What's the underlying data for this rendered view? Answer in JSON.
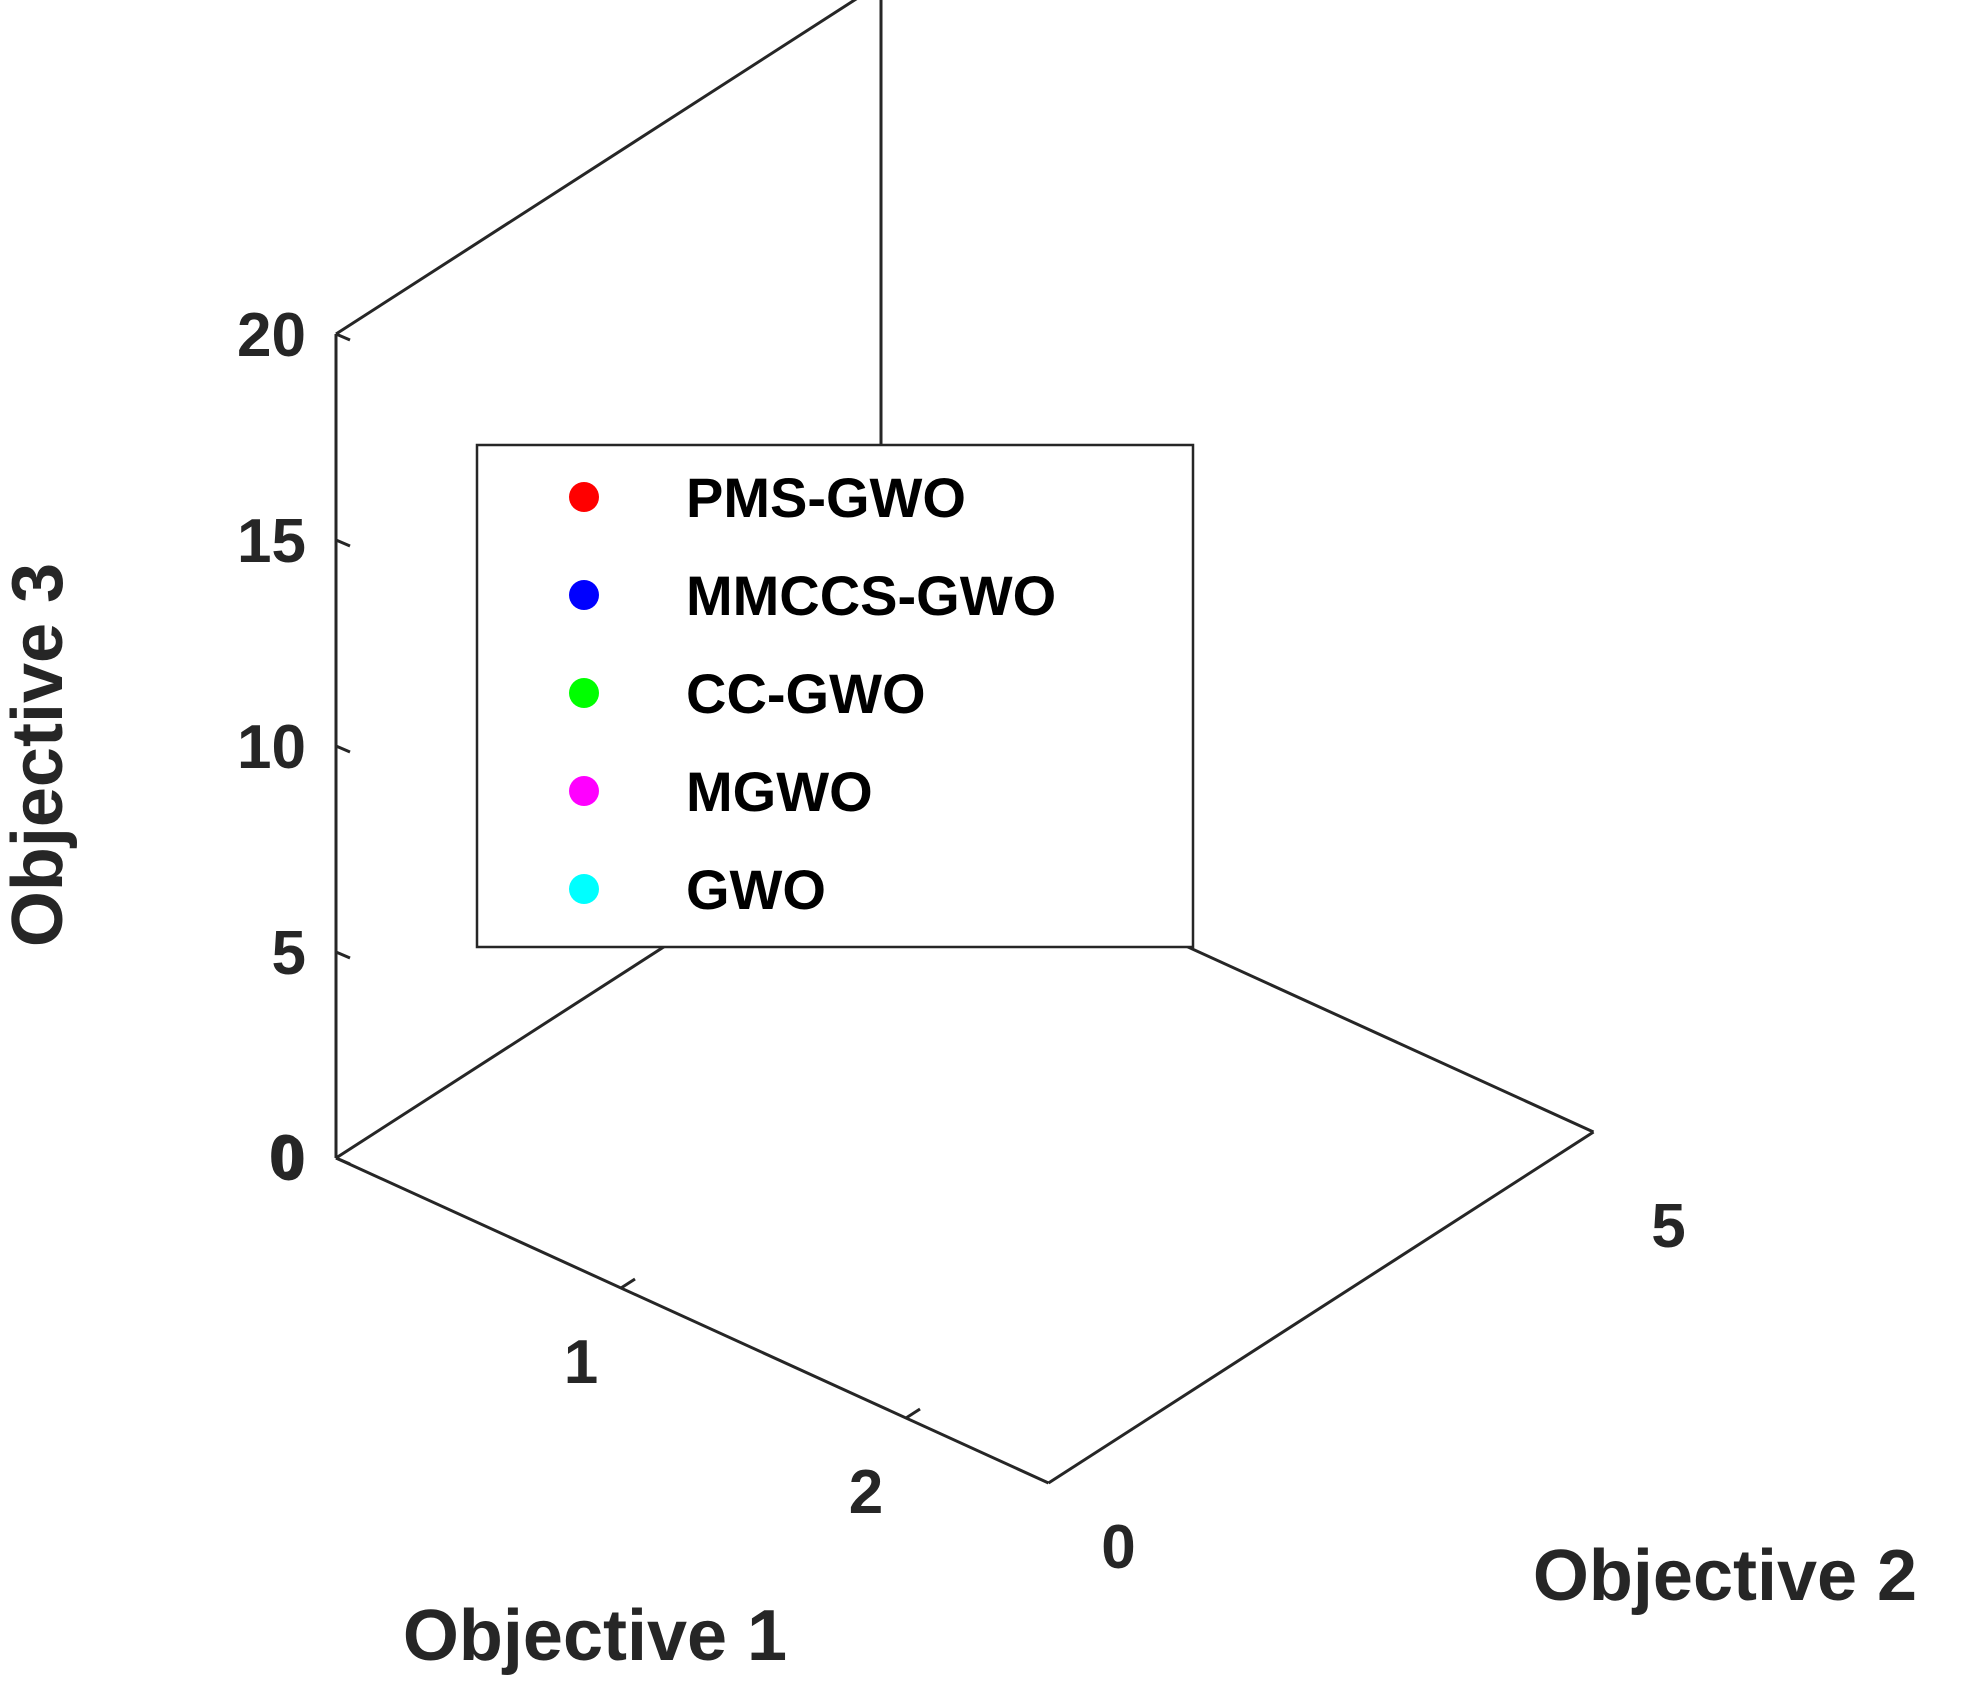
{
  "chart_data": {
    "type": "scatter",
    "title": "",
    "xlabel": "Objective 1",
    "ylabel": "Objective 2",
    "zlabel": "Objective 3",
    "xticks": [
      "0",
      "1",
      "2"
    ],
    "yticks": [
      "0",
      "5"
    ],
    "zticks": [
      "0",
      "5",
      "10",
      "15",
      "20"
    ],
    "xlim": [
      0,
      2.5
    ],
    "ylim": [
      0,
      5
    ],
    "zlim": [
      0,
      20
    ],
    "grid": false,
    "legend_position": "upper-left",
    "series": [
      {
        "name": "PMS-GWO",
        "color": "#ff0000",
        "points": []
      },
      {
        "name": "MMCCS-GWO",
        "color": "#0000ff",
        "points": []
      },
      {
        "name": "CC-GWO",
        "color": "#00ff00",
        "points": []
      },
      {
        "name": "MGWO",
        "color": "#ff00ff",
        "points": []
      },
      {
        "name": "GWO",
        "color": "#00ffff",
        "points": []
      }
    ]
  }
}
